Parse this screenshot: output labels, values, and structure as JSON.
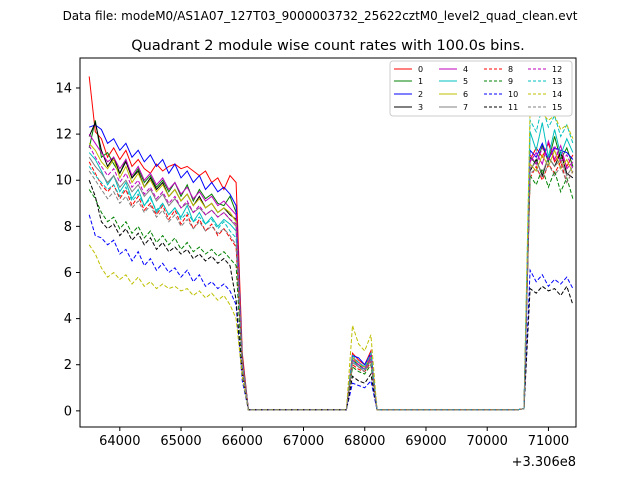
{
  "suptitle": "Data file: modeM0/AS1A07_127T03_9000003732_25622cztM0_level2_quad_clean.evt",
  "chart_data": {
    "type": "line",
    "title": "Quadrant 2 module wise count rates with 100.0s bins.",
    "xlabel": "",
    "ylabel": "",
    "offset_text": "+3.306e8",
    "xlim": [
      63350,
      71450
    ],
    "ylim": [
      -0.7,
      15.3
    ],
    "xticks": [
      64000,
      65000,
      66000,
      67000,
      68000,
      69000,
      70000,
      71000
    ],
    "yticks": [
      0,
      2,
      4,
      6,
      8,
      10,
      12,
      14
    ],
    "grid": false,
    "legend_placement": "top-right",
    "legend_columns": 4,
    "segments": [
      {
        "start": 63500,
        "n": 25
      },
      {
        "start": 66000,
        "n": 24
      },
      {
        "start": 70400,
        "n": 11
      }
    ],
    "series": [
      {
        "name": "0",
        "color": "#ff0000",
        "dash": false,
        "values": [
          14.5,
          12.1,
          11.8,
          11.0,
          11.4,
          10.9,
          11.3,
          10.6,
          10.9,
          10.5,
          10.3,
          10.7,
          10.4,
          10.6,
          10.7,
          10.5,
          10.6,
          10.4,
          10.2,
          10.4,
          9.9,
          10.1,
          9.6,
          10.2,
          9.9,
          2.5,
          0.05,
          0.05,
          0.05,
          0.05,
          0.05,
          0.05,
          0.05,
          0.05,
          0.05,
          0.05,
          0.05,
          0.05,
          0.05,
          0.05,
          0.05,
          0.05,
          0.05,
          2.5,
          2.2,
          2.0,
          2.6,
          0.05,
          0.05,
          0.05,
          0.05,
          0.1,
          10.9,
          11.4,
          11.0,
          11.6,
          10.8,
          11.2,
          10.6,
          11.1,
          9.5
        ]
      },
      {
        "name": "1",
        "color": "#008000",
        "dash": false,
        "values": [
          11.4,
          12.6,
          11.0,
          11.2,
          10.7,
          10.3,
          10.9,
          10.1,
          10.5,
          9.9,
          10.2,
          9.7,
          10.0,
          9.5,
          9.9,
          9.3,
          9.8,
          9.1,
          9.6,
          9.2,
          9.4,
          9.0,
          8.9,
          9.3,
          8.6,
          2.3,
          0.05,
          0.05,
          0.05,
          0.05,
          0.05,
          0.05,
          0.05,
          0.05,
          0.05,
          0.05,
          0.05,
          0.05,
          0.05,
          0.05,
          0.05,
          0.05,
          0.05,
          2.3,
          2.1,
          1.9,
          2.4,
          0.05,
          0.05,
          0.05,
          0.05,
          0.1,
          11.0,
          10.7,
          11.5,
          10.8,
          11.9,
          10.9,
          11.4,
          10.6,
          9.3
        ]
      },
      {
        "name": "2",
        "color": "#0000ff",
        "dash": false,
        "values": [
          12.3,
          12.4,
          12.2,
          11.6,
          11.8,
          11.3,
          11.6,
          11.0,
          11.3,
          10.8,
          11.1,
          10.6,
          10.9,
          10.3,
          10.7,
          10.1,
          10.4,
          9.9,
          10.2,
          9.6,
          9.9,
          9.5,
          9.7,
          9.4,
          8.9,
          2.2,
          0.05,
          0.05,
          0.05,
          0.05,
          0.05,
          0.05,
          0.05,
          0.05,
          0.05,
          0.05,
          0.05,
          0.05,
          0.05,
          0.05,
          0.05,
          0.05,
          0.05,
          2.4,
          2.3,
          2.0,
          2.5,
          0.05,
          0.05,
          0.05,
          0.05,
          0.1,
          11.3,
          11.0,
          11.6,
          10.9,
          11.4,
          11.3,
          11.2,
          10.9,
          9.7
        ]
      },
      {
        "name": "3",
        "color": "#000000",
        "dash": false,
        "values": [
          11.9,
          12.5,
          11.3,
          10.6,
          11.0,
          10.3,
          10.8,
          10.1,
          10.4,
          9.7,
          10.1,
          9.6,
          9.9,
          9.3,
          9.6,
          9.1,
          9.4,
          8.9,
          9.3,
          8.8,
          9.0,
          8.6,
          8.8,
          8.5,
          8.3,
          2.1,
          0.05,
          0.05,
          0.05,
          0.05,
          0.05,
          0.05,
          0.05,
          0.05,
          0.05,
          0.05,
          0.05,
          0.05,
          0.05,
          0.05,
          0.05,
          0.05,
          0.05,
          2.2,
          2.0,
          1.8,
          2.3,
          0.05,
          0.05,
          0.05,
          0.05,
          0.1,
          10.4,
          10.9,
          10.2,
          11.0,
          10.6,
          11.2,
          10.3,
          10.1,
          8.9
        ]
      },
      {
        "name": "4",
        "color": "#bf00bf",
        "dash": false,
        "values": [
          12.0,
          11.6,
          11.2,
          10.8,
          11.0,
          10.5,
          10.9,
          10.2,
          10.6,
          10.0,
          10.3,
          9.8,
          10.1,
          9.6,
          9.9,
          9.4,
          9.7,
          9.2,
          9.5,
          9.1,
          9.3,
          8.9,
          9.1,
          8.8,
          8.5,
          2.2,
          0.05,
          0.05,
          0.05,
          0.05,
          0.05,
          0.05,
          0.05,
          0.05,
          0.05,
          0.05,
          0.05,
          0.05,
          0.05,
          0.05,
          0.05,
          0.05,
          0.05,
          2.3,
          2.1,
          1.9,
          2.4,
          0.05,
          0.05,
          0.05,
          0.05,
          0.1,
          10.8,
          11.2,
          10.7,
          11.7,
          10.9,
          11.5,
          10.5,
          10.8,
          9.4
        ]
      },
      {
        "name": "5",
        "color": "#00bfbf",
        "dash": false,
        "values": [
          11.2,
          10.9,
          10.4,
          9.8,
          10.2,
          9.5,
          9.9,
          9.2,
          9.6,
          8.9,
          9.3,
          8.6,
          9.0,
          8.5,
          8.8,
          8.4,
          8.9,
          8.2,
          8.6,
          8.1,
          8.4,
          8.0,
          8.3,
          8.1,
          7.8,
          2.0,
          0.05,
          0.05,
          0.05,
          0.05,
          0.05,
          0.05,
          0.05,
          0.05,
          0.05,
          0.05,
          0.05,
          0.05,
          0.05,
          0.05,
          0.05,
          0.05,
          0.05,
          2.2,
          1.9,
          1.8,
          2.2,
          0.05,
          0.05,
          0.05,
          0.05,
          0.1,
          12.1,
          11.3,
          12.5,
          11.0,
          12.2,
          11.1,
          11.8,
          11.2,
          10.0
        ]
      },
      {
        "name": "6",
        "color": "#bfbf00",
        "dash": false,
        "values": [
          11.6,
          11.3,
          10.8,
          10.5,
          10.9,
          10.1,
          10.6,
          9.9,
          10.3,
          9.7,
          10.0,
          9.5,
          9.8,
          9.3,
          9.6,
          9.1,
          9.4,
          8.9,
          9.2,
          8.8,
          9.0,
          8.6,
          8.8,
          8.6,
          8.2,
          2.1,
          0.05,
          0.05,
          0.05,
          0.05,
          0.05,
          0.05,
          0.05,
          0.05,
          0.05,
          0.05,
          0.05,
          0.05,
          0.05,
          0.05,
          0.05,
          0.05,
          0.05,
          2.3,
          2.0,
          1.9,
          2.3,
          0.05,
          0.05,
          0.05,
          0.05,
          0.1,
          10.7,
          10.4,
          11.1,
          10.6,
          11.3,
          10.5,
          10.9,
          10.3,
          9.2
        ]
      },
      {
        "name": "7",
        "color": "#808080",
        "dash": false,
        "values": [
          11.0,
          10.6,
          10.3,
          9.9,
          10.2,
          9.7,
          10.0,
          9.5,
          9.8,
          9.3,
          9.6,
          9.1,
          9.4,
          8.9,
          9.2,
          8.8,
          9.0,
          8.6,
          8.8,
          8.5,
          8.7,
          8.4,
          8.6,
          8.3,
          8.0,
          2.0,
          0.05,
          0.05,
          0.05,
          0.05,
          0.05,
          0.05,
          0.05,
          0.05,
          0.05,
          0.05,
          0.05,
          0.05,
          0.05,
          0.05,
          0.05,
          0.05,
          0.05,
          2.1,
          1.9,
          1.7,
          2.2,
          0.05,
          0.05,
          0.05,
          0.05,
          0.1,
          10.5,
          10.8,
          10.3,
          11.0,
          10.6,
          10.9,
          10.2,
          10.6,
          9.1
        ]
      },
      {
        "name": "8",
        "color": "#ff0000",
        "dash": true,
        "values": [
          10.8,
          10.3,
          9.8,
          9.5,
          9.8,
          9.2,
          9.6,
          8.9,
          9.3,
          8.7,
          9.0,
          8.5,
          8.9,
          8.3,
          8.7,
          8.1,
          8.5,
          7.9,
          8.3,
          7.8,
          8.1,
          7.6,
          7.9,
          7.5,
          7.1,
          1.9,
          0.05,
          0.05,
          0.05,
          0.05,
          0.05,
          0.05,
          0.05,
          0.05,
          0.05,
          0.05,
          0.05,
          0.05,
          0.05,
          0.05,
          0.05,
          0.05,
          0.05,
          2.0,
          1.8,
          1.7,
          2.1,
          0.05,
          0.05,
          0.05,
          0.05,
          0.1,
          10.1,
          10.6,
          10.0,
          10.7,
          10.3,
          10.8,
          9.9,
          10.4,
          8.9
        ]
      },
      {
        "name": "9",
        "color": "#008000",
        "dash": true,
        "values": [
          9.6,
          9.2,
          8.6,
          8.2,
          8.4,
          7.9,
          8.2,
          7.7,
          8.0,
          7.5,
          7.8,
          7.3,
          7.6,
          7.2,
          7.5,
          7.0,
          7.3,
          6.9,
          7.1,
          6.8,
          7.0,
          6.7,
          6.9,
          6.6,
          6.3,
          1.7,
          0.05,
          0.05,
          0.05,
          0.05,
          0.05,
          0.05,
          0.05,
          0.05,
          0.05,
          0.05,
          0.05,
          0.05,
          0.05,
          0.05,
          0.05,
          0.05,
          0.05,
          1.9,
          1.7,
          1.6,
          2.0,
          0.05,
          0.05,
          0.05,
          0.05,
          0.1,
          10.2,
          9.8,
          10.5,
          9.7,
          10.4,
          9.5,
          10.1,
          9.2,
          8.5
        ]
      },
      {
        "name": "10",
        "color": "#0000ff",
        "dash": true,
        "values": [
          8.5,
          7.6,
          7.5,
          7.2,
          7.4,
          6.8,
          7.0,
          6.5,
          6.9,
          6.3,
          6.6,
          6.1,
          6.4,
          6.0,
          6.2,
          5.8,
          6.1,
          5.6,
          5.9,
          5.4,
          5.6,
          5.3,
          5.5,
          5.2,
          4.6,
          1.3,
          0.05,
          0.05,
          0.05,
          0.05,
          0.05,
          0.05,
          0.05,
          0.05,
          0.05,
          0.05,
          0.05,
          0.05,
          0.05,
          0.05,
          0.05,
          0.05,
          0.05,
          1.2,
          1.1,
          1.0,
          1.3,
          0.05,
          0.05,
          0.05,
          0.05,
          0.1,
          6.1,
          5.6,
          5.9,
          5.4,
          5.7,
          5.5,
          5.8,
          5.3,
          5.2
        ]
      },
      {
        "name": "11",
        "color": "#000000",
        "dash": true,
        "values": [
          10.0,
          9.3,
          8.2,
          7.9,
          8.1,
          7.6,
          7.9,
          7.4,
          7.7,
          7.2,
          7.5,
          7.0,
          7.3,
          6.9,
          7.1,
          6.8,
          7.0,
          6.6,
          6.8,
          6.5,
          6.7,
          6.4,
          6.6,
          6.3,
          4.8,
          1.6,
          0.05,
          0.05,
          0.05,
          0.05,
          0.05,
          0.05,
          0.05,
          0.05,
          0.05,
          0.05,
          0.05,
          0.05,
          0.05,
          0.05,
          0.05,
          0.05,
          0.05,
          1.5,
          1.3,
          1.2,
          1.6,
          0.05,
          0.05,
          0.05,
          0.05,
          0.1,
          5.3,
          5.1,
          5.4,
          5.2,
          5.3,
          5.0,
          5.4,
          4.6,
          4.5
        ]
      },
      {
        "name": "12",
        "color": "#bf00bf",
        "dash": true,
        "values": [
          11.5,
          11.0,
          10.6,
          10.2,
          10.5,
          9.9,
          10.3,
          9.7,
          10.0,
          9.4,
          9.7,
          9.2,
          9.5,
          9.0,
          9.3,
          8.8,
          9.1,
          8.6,
          8.9,
          8.5,
          8.7,
          8.4,
          8.6,
          8.3,
          8.1,
          2.1,
          0.05,
          0.05,
          0.05,
          0.05,
          0.05,
          0.05,
          0.05,
          0.05,
          0.05,
          0.05,
          0.05,
          0.05,
          0.05,
          0.05,
          0.05,
          0.05,
          0.05,
          2.2,
          2.0,
          1.8,
          2.3,
          0.05,
          0.05,
          0.05,
          0.05,
          0.1,
          11.1,
          10.7,
          11.4,
          10.9,
          11.5,
          10.8,
          11.1,
          10.5,
          9.6
        ]
      },
      {
        "name": "13",
        "color": "#00bfbf",
        "dash": true,
        "values": [
          10.6,
          10.2,
          9.9,
          9.6,
          9.8,
          9.3,
          9.7,
          9.1,
          9.4,
          8.9,
          9.2,
          8.7,
          9.0,
          8.5,
          8.8,
          8.3,
          8.6,
          8.2,
          8.4,
          8.1,
          8.3,
          7.9,
          8.2,
          7.8,
          7.5,
          2.0,
          0.05,
          0.05,
          0.05,
          0.05,
          0.05,
          0.05,
          0.05,
          0.05,
          0.05,
          0.05,
          0.05,
          0.05,
          0.05,
          0.05,
          0.05,
          0.05,
          0.05,
          2.4,
          2.1,
          1.9,
          2.5,
          0.05,
          0.05,
          0.05,
          0.05,
          0.1,
          12.6,
          12.1,
          13.2,
          12.3,
          12.8,
          11.9,
          12.4,
          11.6,
          10.6
        ]
      },
      {
        "name": "14",
        "color": "#bfbf00",
        "dash": true,
        "values": [
          7.2,
          6.8,
          6.2,
          5.8,
          6.0,
          5.7,
          5.9,
          5.5,
          5.8,
          5.4,
          5.6,
          5.3,
          5.5,
          5.3,
          5.4,
          5.2,
          5.3,
          5.0,
          5.2,
          4.9,
          5.1,
          4.8,
          5.0,
          4.6,
          4.0,
          1.5,
          0.05,
          0.05,
          0.05,
          0.05,
          0.05,
          0.05,
          0.05,
          0.05,
          0.05,
          0.05,
          0.05,
          0.05,
          0.05,
          0.05,
          0.05,
          0.05,
          0.05,
          3.7,
          2.9,
          2.6,
          3.3,
          0.05,
          0.05,
          0.05,
          0.05,
          0.1,
          13.1,
          13.4,
          12.9,
          12.6,
          12.8,
          12.2,
          12.4,
          11.8,
          11.2
        ]
      },
      {
        "name": "15",
        "color": "#808080",
        "dash": true,
        "values": [
          10.4,
          10.0,
          9.6,
          9.2,
          9.5,
          9.0,
          9.3,
          8.8,
          9.1,
          8.6,
          8.9,
          8.4,
          8.7,
          8.2,
          8.5,
          8.0,
          8.3,
          7.9,
          8.2,
          7.8,
          8.0,
          7.7,
          7.9,
          7.6,
          7.2,
          1.9,
          0.05,
          0.05,
          0.05,
          0.05,
          0.05,
          0.05,
          0.05,
          0.05,
          0.05,
          0.05,
          0.05,
          0.05,
          0.05,
          0.05,
          0.05,
          0.05,
          0.05,
          2.1,
          1.9,
          1.7,
          2.2,
          0.05,
          0.05,
          0.05,
          0.05,
          0.1,
          10.3,
          10.5,
          10.1,
          10.7,
          10.2,
          10.6,
          9.9,
          10.4,
          9.0
        ]
      }
    ]
  }
}
